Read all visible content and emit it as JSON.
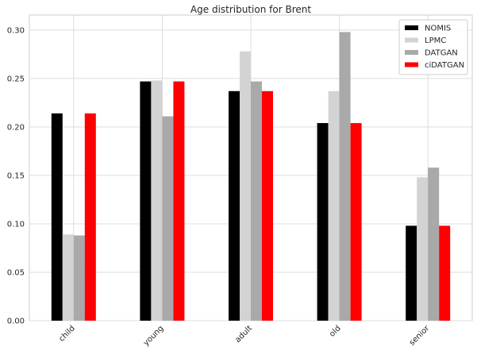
{
  "chart_data": {
    "type": "bar",
    "title": "Age distribution for Brent",
    "xlabel": "",
    "ylabel": "",
    "categories": [
      "child",
      "young",
      "adult",
      "old",
      "senior"
    ],
    "series": [
      {
        "name": "NOMIS",
        "color": "#000000",
        "values": [
          0.214,
          0.247,
          0.237,
          0.204,
          0.098
        ]
      },
      {
        "name": "LPMC",
        "color": "#d3d3d3",
        "values": [
          0.089,
          0.248,
          0.278,
          0.237,
          0.148
        ]
      },
      {
        "name": "DATGAN",
        "color": "#a9a9a9",
        "values": [
          0.088,
          0.211,
          0.247,
          0.298,
          0.158
        ]
      },
      {
        "name": "ciDATGAN",
        "color": "#ff0000",
        "values": [
          0.214,
          0.247,
          0.237,
          0.204,
          0.098
        ]
      }
    ],
    "yticks": [
      "0.00",
      "0.05",
      "0.10",
      "0.15",
      "0.20",
      "0.25",
      "0.30"
    ],
    "ylim": [
      0,
      0.3155
    ],
    "grid": true,
    "legend_position": "top-right"
  }
}
